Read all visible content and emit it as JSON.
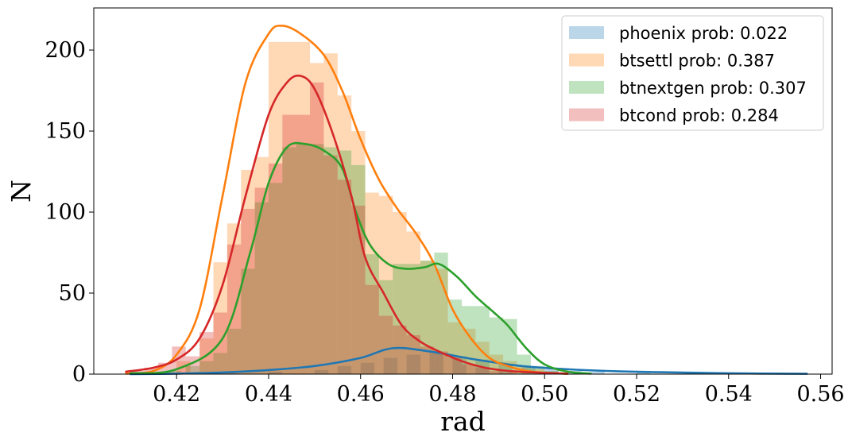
{
  "chart_data": {
    "type": "histogram",
    "xlabel": "rad",
    "ylabel": "N",
    "xlim": [
      0.402,
      0.5625
    ],
    "ylim": [
      0,
      226
    ],
    "xticks": [
      0.42,
      0.44,
      0.46,
      0.48,
      0.5,
      0.52,
      0.54,
      0.56
    ],
    "xtick_labels": [
      "0.42",
      "0.44",
      "0.46",
      "0.48",
      "0.50",
      "0.52",
      "0.54",
      "0.56"
    ],
    "yticks": [
      0,
      50,
      100,
      150,
      200
    ],
    "ytick_labels": [
      "0",
      "50",
      "100",
      "150",
      "200"
    ],
    "grid": false,
    "legend_position": "top-right",
    "series": [
      {
        "name": "phoenix prob: 0.022",
        "color": "#1f77b4",
        "hist": [
          [
            0.42,
            0.5
          ],
          [
            0.43,
            0.8
          ],
          [
            0.44,
            1.5
          ],
          [
            0.45,
            2.5
          ],
          [
            0.455,
            5
          ],
          [
            0.46,
            7
          ],
          [
            0.465,
            10
          ],
          [
            0.47,
            12
          ],
          [
            0.475,
            14
          ],
          [
            0.48,
            11
          ],
          [
            0.485,
            9
          ],
          [
            0.49,
            6
          ],
          [
            0.495,
            4
          ],
          [
            0.5,
            3
          ],
          [
            0.505,
            2
          ],
          [
            0.51,
            1.5
          ],
          [
            0.52,
            1
          ],
          [
            0.53,
            0.5
          ],
          [
            0.55,
            0.3
          ]
        ],
        "kde": [
          [
            0.41,
            0
          ],
          [
            0.42,
            0.3
          ],
          [
            0.43,
            1
          ],
          [
            0.44,
            2.5
          ],
          [
            0.45,
            5
          ],
          [
            0.46,
            10
          ],
          [
            0.467,
            16
          ],
          [
            0.475,
            14
          ],
          [
            0.485,
            9
          ],
          [
            0.495,
            5
          ],
          [
            0.505,
            3
          ],
          [
            0.515,
            1.8
          ],
          [
            0.525,
            1.2
          ],
          [
            0.54,
            0.5
          ],
          [
            0.557,
            0.2
          ]
        ]
      },
      {
        "name": "btsettl prob: 0.387",
        "color": "#ff7f0e",
        "hist": [
          [
            0.42,
            8
          ],
          [
            0.425,
            22
          ],
          [
            0.428,
            69
          ],
          [
            0.431,
            93
          ],
          [
            0.434,
            126
          ],
          [
            0.437,
            134
          ],
          [
            0.44,
            205
          ],
          [
            0.443,
            205
          ],
          [
            0.446,
            205
          ],
          [
            0.449,
            192
          ],
          [
            0.452,
            198
          ],
          [
            0.455,
            172
          ],
          [
            0.458,
            150
          ],
          [
            0.461,
            112
          ],
          [
            0.464,
            110
          ],
          [
            0.467,
            100
          ],
          [
            0.47,
            88
          ],
          [
            0.473,
            70
          ],
          [
            0.476,
            65
          ],
          [
            0.479,
            32
          ],
          [
            0.482,
            28
          ],
          [
            0.485,
            20
          ],
          [
            0.488,
            12
          ],
          [
            0.491,
            8
          ],
          [
            0.494,
            5
          ],
          [
            0.497,
            3
          ],
          [
            0.5,
            1.5
          ]
        ],
        "kde": [
          [
            0.409,
            0.3
          ],
          [
            0.415,
            2
          ],
          [
            0.42,
            12
          ],
          [
            0.425,
            40
          ],
          [
            0.43,
            110
          ],
          [
            0.435,
            180
          ],
          [
            0.44,
            210
          ],
          [
            0.443,
            215
          ],
          [
            0.447,
            210
          ],
          [
            0.452,
            197
          ],
          [
            0.456,
            175
          ],
          [
            0.46,
            145
          ],
          [
            0.464,
            120
          ],
          [
            0.468,
            102
          ],
          [
            0.472,
            87
          ],
          [
            0.476,
            68
          ],
          [
            0.48,
            40
          ],
          [
            0.484,
            22
          ],
          [
            0.488,
            10
          ],
          [
            0.492,
            5
          ],
          [
            0.496,
            2
          ],
          [
            0.5,
            0.8
          ],
          [
            0.505,
            0.2
          ]
        ]
      },
      {
        "name": "btnextgen prob: 0.307",
        "color": "#2ca02c",
        "hist": [
          [
            0.413,
            0.5
          ],
          [
            0.418,
            2
          ],
          [
            0.422,
            5
          ],
          [
            0.425,
            8
          ],
          [
            0.428,
            13
          ],
          [
            0.431,
            28
          ],
          [
            0.434,
            65
          ],
          [
            0.437,
            106
          ],
          [
            0.44,
            118
          ],
          [
            0.443,
            140
          ],
          [
            0.446,
            142
          ],
          [
            0.449,
            142
          ],
          [
            0.452,
            140
          ],
          [
            0.455,
            138
          ],
          [
            0.458,
            129
          ],
          [
            0.461,
            74
          ],
          [
            0.464,
            58
          ],
          [
            0.467,
            68
          ],
          [
            0.47,
            68
          ],
          [
            0.473,
            70
          ],
          [
            0.476,
            75
          ],
          [
            0.479,
            46
          ],
          [
            0.482,
            42
          ],
          [
            0.485,
            42
          ],
          [
            0.488,
            35
          ],
          [
            0.491,
            34
          ],
          [
            0.494,
            12
          ],
          [
            0.497,
            5
          ],
          [
            0.5,
            2
          ]
        ],
        "kde": [
          [
            0.41,
            0.5
          ],
          [
            0.42,
            3
          ],
          [
            0.43,
            22
          ],
          [
            0.436,
            75
          ],
          [
            0.44,
            118
          ],
          [
            0.444,
            140
          ],
          [
            0.448,
            142
          ],
          [
            0.452,
            138
          ],
          [
            0.456,
            127
          ],
          [
            0.459,
            100
          ],
          [
            0.462,
            80
          ],
          [
            0.466,
            68
          ],
          [
            0.47,
            65
          ],
          [
            0.474,
            66
          ],
          [
            0.477,
            68
          ],
          [
            0.481,
            60
          ],
          [
            0.485,
            48
          ],
          [
            0.489,
            38
          ],
          [
            0.492,
            30
          ],
          [
            0.496,
            16
          ],
          [
            0.5,
            6
          ],
          [
            0.505,
            1.5
          ],
          [
            0.51,
            0.3
          ]
        ]
      },
      {
        "name": "btcond prob: 0.284",
        "color": "#d62728",
        "hist": [
          [
            0.41,
            2
          ],
          [
            0.413,
            4
          ],
          [
            0.416,
            7
          ],
          [
            0.419,
            17
          ],
          [
            0.422,
            11
          ],
          [
            0.425,
            26
          ],
          [
            0.428,
            38
          ],
          [
            0.431,
            80
          ],
          [
            0.434,
            102
          ],
          [
            0.437,
            115
          ],
          [
            0.44,
            130
          ],
          [
            0.443,
            160
          ],
          [
            0.446,
            160
          ],
          [
            0.449,
            180
          ],
          [
            0.452,
            135
          ],
          [
            0.455,
            120
          ],
          [
            0.458,
            104
          ],
          [
            0.461,
            55
          ],
          [
            0.464,
            36
          ],
          [
            0.467,
            30
          ],
          [
            0.47,
            24
          ],
          [
            0.473,
            17
          ],
          [
            0.476,
            14
          ],
          [
            0.479,
            10
          ],
          [
            0.482,
            6
          ],
          [
            0.485,
            4
          ],
          [
            0.488,
            2
          ],
          [
            0.491,
            1
          ]
        ],
        "kde": [
          [
            0.409,
            1.5
          ],
          [
            0.415,
            4
          ],
          [
            0.42,
            9
          ],
          [
            0.425,
            22
          ],
          [
            0.43,
            55
          ],
          [
            0.435,
            110
          ],
          [
            0.44,
            160
          ],
          [
            0.444,
            180
          ],
          [
            0.447,
            184
          ],
          [
            0.45,
            176
          ],
          [
            0.454,
            148
          ],
          [
            0.458,
            110
          ],
          [
            0.461,
            72
          ],
          [
            0.465,
            50
          ],
          [
            0.469,
            30
          ],
          [
            0.473,
            20
          ],
          [
            0.477,
            14
          ],
          [
            0.482,
            8
          ],
          [
            0.487,
            4
          ],
          [
            0.492,
            2
          ],
          [
            0.498,
            1
          ],
          [
            0.505,
            0.3
          ]
        ]
      }
    ]
  }
}
